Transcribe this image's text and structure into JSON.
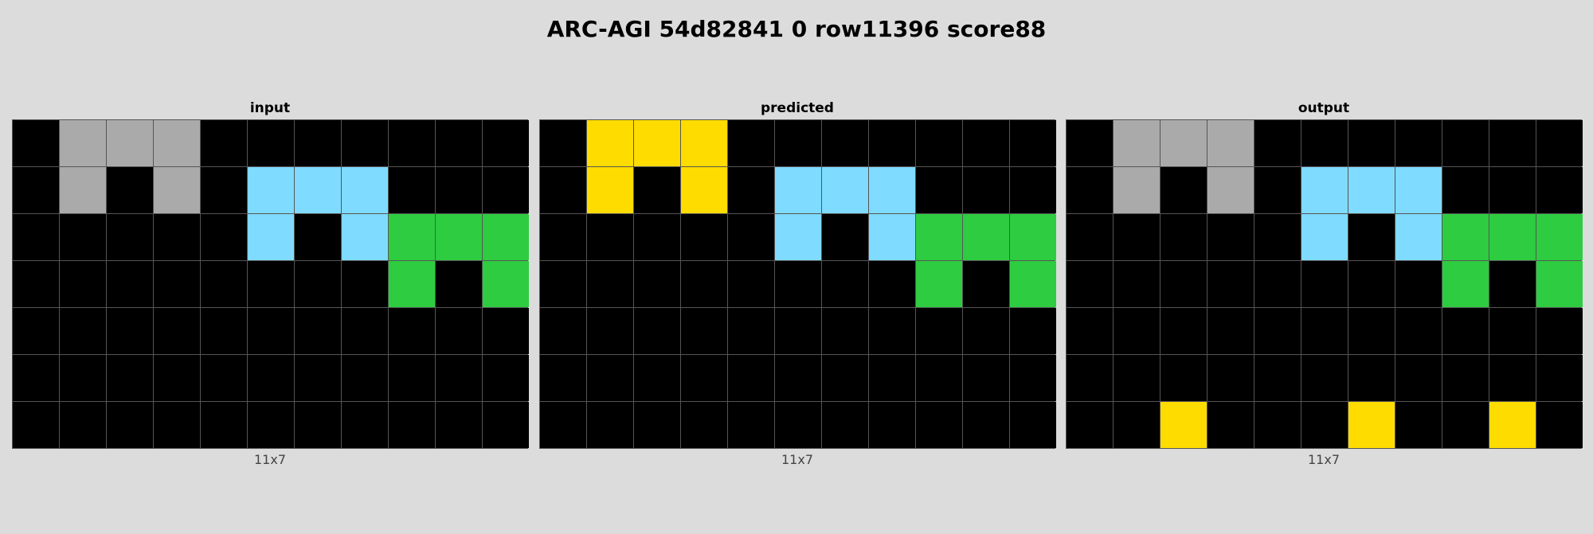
{
  "title": "ARC-AGI 54d82841 0 row11396 score88",
  "palette": {
    "0": "#000000",
    "3": "#2ecc40",
    "4": "#ffdc00",
    "5": "#aaaaaa",
    "8": "#7fdbff"
  },
  "panels": [
    {
      "label": "input",
      "size": "11x7",
      "grid": [
        [
          0,
          5,
          5,
          5,
          0,
          0,
          0,
          0,
          0,
          0,
          0
        ],
        [
          0,
          5,
          0,
          5,
          0,
          8,
          8,
          8,
          0,
          0,
          0
        ],
        [
          0,
          0,
          0,
          0,
          0,
          8,
          0,
          8,
          3,
          3,
          3
        ],
        [
          0,
          0,
          0,
          0,
          0,
          0,
          0,
          0,
          3,
          0,
          3
        ],
        [
          0,
          0,
          0,
          0,
          0,
          0,
          0,
          0,
          0,
          0,
          0
        ],
        [
          0,
          0,
          0,
          0,
          0,
          0,
          0,
          0,
          0,
          0,
          0
        ],
        [
          0,
          0,
          0,
          0,
          0,
          0,
          0,
          0,
          0,
          0,
          0
        ]
      ]
    },
    {
      "label": "predicted",
      "size": "11x7",
      "grid": [
        [
          0,
          4,
          4,
          4,
          0,
          0,
          0,
          0,
          0,
          0,
          0
        ],
        [
          0,
          4,
          0,
          4,
          0,
          8,
          8,
          8,
          0,
          0,
          0
        ],
        [
          0,
          0,
          0,
          0,
          0,
          8,
          0,
          8,
          3,
          3,
          3
        ],
        [
          0,
          0,
          0,
          0,
          0,
          0,
          0,
          0,
          3,
          0,
          3
        ],
        [
          0,
          0,
          0,
          0,
          0,
          0,
          0,
          0,
          0,
          0,
          0
        ],
        [
          0,
          0,
          0,
          0,
          0,
          0,
          0,
          0,
          0,
          0,
          0
        ],
        [
          0,
          0,
          0,
          0,
          0,
          0,
          0,
          0,
          0,
          0,
          0
        ]
      ]
    },
    {
      "label": "output",
      "size": "11x7",
      "grid": [
        [
          0,
          5,
          5,
          5,
          0,
          0,
          0,
          0,
          0,
          0,
          0
        ],
        [
          0,
          5,
          0,
          5,
          0,
          8,
          8,
          8,
          0,
          0,
          0
        ],
        [
          0,
          0,
          0,
          0,
          0,
          8,
          0,
          8,
          3,
          3,
          3
        ],
        [
          0,
          0,
          0,
          0,
          0,
          0,
          0,
          0,
          3,
          0,
          3
        ],
        [
          0,
          0,
          0,
          0,
          0,
          0,
          0,
          0,
          0,
          0,
          0
        ],
        [
          0,
          0,
          0,
          0,
          0,
          0,
          0,
          0,
          0,
          0,
          0
        ],
        [
          0,
          0,
          4,
          0,
          0,
          0,
          4,
          0,
          0,
          4,
          0
        ]
      ]
    }
  ]
}
